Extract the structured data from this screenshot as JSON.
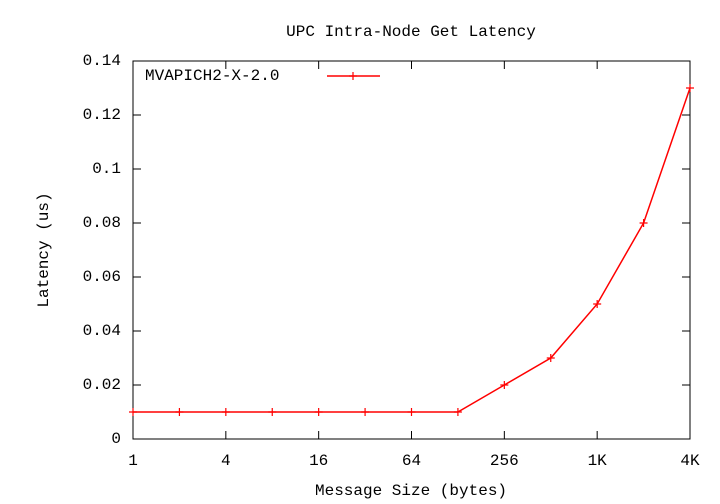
{
  "chart_data": {
    "type": "line",
    "title": "UPC Intra-Node Get Latency",
    "x_label": "Message Size (bytes)",
    "y_label": "Latency (us)",
    "x": [
      1,
      2,
      4,
      8,
      16,
      32,
      64,
      128,
      256,
      512,
      1024,
      2048,
      4096
    ],
    "series": [
      {
        "name": "MVAPICH2-X-2.0",
        "color": "#ff0000",
        "values": [
          0.01,
          0.01,
          0.01,
          0.01,
          0.01,
          0.01,
          0.01,
          0.01,
          0.02,
          0.03,
          0.05,
          0.08,
          0.13
        ]
      }
    ],
    "xlim": [
      1,
      4096
    ],
    "x_log_base": 2,
    "xticks": [
      1,
      4,
      16,
      64,
      256,
      {
        "value": 1024,
        "label": "1K"
      },
      {
        "value": 4096,
        "label": "4K"
      }
    ],
    "ylim": [
      0,
      0.14
    ],
    "yticks": [
      0,
      0.02,
      0.04,
      0.06,
      0.08,
      0.1,
      0.12,
      0.14
    ],
    "grid": false,
    "legend": "top-left"
  }
}
